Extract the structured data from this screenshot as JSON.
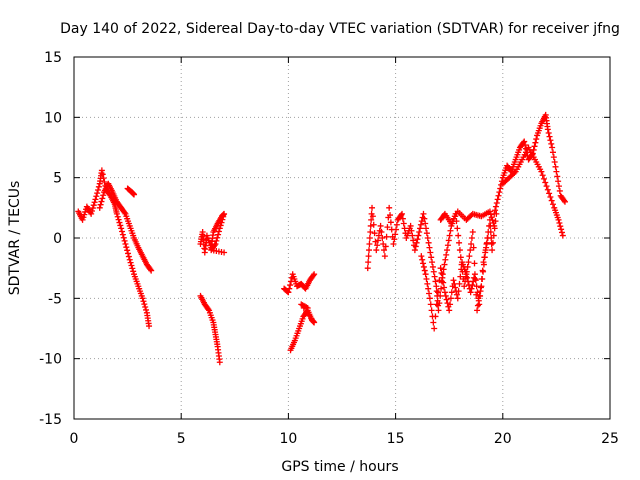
{
  "chart_data": {
    "type": "scatter",
    "title": "Day 140 of 2022, Sidereal Day-to-day VTEC variation (SDTVAR) for receiver jfng",
    "xlabel": "GPS time / hours",
    "ylabel": "SDTVAR / TECUs",
    "xlim": [
      0,
      25
    ],
    "ylim": [
      -15,
      15
    ],
    "xticks": [
      0,
      5,
      10,
      15,
      20,
      25
    ],
    "yticks": [
      -15,
      -10,
      -5,
      0,
      5,
      10,
      15
    ],
    "grid": true,
    "marker": "+",
    "color": "#ff0000",
    "series": [
      {
        "name": "SDTVAR",
        "segments": [
          [
            [
              0.2,
              2.2
            ],
            [
              0.4,
              1.5
            ],
            [
              0.6,
              2.6
            ],
            [
              0.8,
              2.0
            ],
            [
              1.0,
              3.2
            ],
            [
              1.2,
              4.5
            ],
            [
              1.3,
              5.6
            ],
            [
              1.5,
              4.0
            ],
            [
              1.7,
              3.5
            ],
            [
              1.9,
              2.8
            ],
            [
              2.0,
              2.0
            ],
            [
              2.2,
              0.8
            ],
            [
              2.4,
              -0.5
            ],
            [
              2.6,
              -1.8
            ],
            [
              2.8,
              -3.0
            ],
            [
              3.0,
              -4.0
            ],
            [
              3.2,
              -5.0
            ],
            [
              3.4,
              -6.2
            ],
            [
              3.5,
              -7.3
            ]
          ],
          [
            [
              1.2,
              2.5
            ],
            [
              1.4,
              3.8
            ],
            [
              1.6,
              4.5
            ],
            [
              1.8,
              3.8
            ],
            [
              2.0,
              3.0
            ],
            [
              2.2,
              2.5
            ],
            [
              2.4,
              2.0
            ],
            [
              2.6,
              1.0
            ],
            [
              2.8,
              0.0
            ],
            [
              3.0,
              -0.8
            ],
            [
              3.2,
              -1.5
            ],
            [
              3.4,
              -2.2
            ],
            [
              3.6,
              -2.7
            ]
          ],
          [
            [
              2.5,
              4.1
            ],
            [
              2.7,
              3.8
            ],
            [
              2.8,
              3.6
            ]
          ],
          [
            [
              5.9,
              -0.5
            ],
            [
              6.0,
              0.5
            ],
            [
              6.1,
              -1.2
            ],
            [
              6.2,
              0.2
            ],
            [
              6.4,
              -0.8
            ],
            [
              6.5,
              0.5
            ],
            [
              6.7,
              1.2
            ],
            [
              6.9,
              1.8
            ],
            [
              7.0,
              2.0
            ],
            [
              6.8,
              0.8
            ],
            [
              6.6,
              -0.5
            ],
            [
              6.4,
              -1.0
            ],
            [
              7.0,
              -1.2
            ]
          ],
          [
            [
              5.9,
              -4.8
            ],
            [
              6.1,
              -5.5
            ],
            [
              6.3,
              -6.0
            ],
            [
              6.5,
              -7.0
            ],
            [
              6.6,
              -8.0
            ],
            [
              6.7,
              -9.0
            ],
            [
              6.8,
              -10.3
            ]
          ],
          [
            [
              9.8,
              -4.2
            ],
            [
              10.0,
              -4.5
            ],
            [
              10.2,
              -3.0
            ],
            [
              10.4,
              -4.0
            ],
            [
              10.6,
              -3.8
            ],
            [
              10.8,
              -4.2
            ],
            [
              11.0,
              -3.5
            ],
            [
              11.2,
              -3.0
            ]
          ],
          [
            [
              10.1,
              -9.3
            ],
            [
              10.3,
              -8.5
            ],
            [
              10.5,
              -7.5
            ],
            [
              10.7,
              -6.5
            ],
            [
              10.9,
              -6.0
            ],
            [
              11.1,
              -6.8
            ],
            [
              11.2,
              -7.0
            ],
            [
              10.6,
              -5.5
            ],
            [
              10.9,
              -5.8
            ]
          ],
          [
            [
              13.7,
              -2.5
            ],
            [
              13.8,
              0.0
            ],
            [
              13.9,
              2.5
            ],
            [
              14.1,
              -1.0
            ],
            [
              14.3,
              1.0
            ],
            [
              14.5,
              -1.5
            ],
            [
              14.7,
              2.5
            ],
            [
              14.9,
              -0.5
            ],
            [
              15.1,
              1.5
            ],
            [
              15.3,
              2.0
            ],
            [
              15.5,
              0.0
            ],
            [
              15.7,
              1.0
            ],
            [
              15.9,
              -1.0
            ],
            [
              16.1,
              0.5
            ],
            [
              16.3,
              2.0
            ],
            [
              16.5,
              0.0
            ],
            [
              16.7,
              -2.0
            ],
            [
              16.9,
              -4.0
            ],
            [
              17.0,
              -6.0
            ],
            [
              17.2,
              -3.0
            ],
            [
              17.4,
              -1.0
            ],
            [
              17.6,
              1.0
            ],
            [
              17.8,
              2.0
            ],
            [
              18.0,
              -1.0
            ],
            [
              18.2,
              -4.0
            ],
            [
              18.4,
              -2.0
            ],
            [
              18.6,
              0.5
            ],
            [
              18.8,
              -6.0
            ],
            [
              19.0,
              -4.0
            ],
            [
              19.2,
              -1.0
            ],
            [
              19.4,
              1.5
            ],
            [
              19.5,
              -1.0
            ],
            [
              19.7,
              2.0
            ]
          ],
          [
            [
              16.2,
              -1.5
            ],
            [
              16.4,
              -3.0
            ],
            [
              16.6,
              -5.0
            ],
            [
              16.8,
              -7.5
            ],
            [
              17.1,
              -2.5
            ],
            [
              17.3,
              -4.5
            ],
            [
              17.5,
              -6.0
            ],
            [
              17.7,
              -3.5
            ],
            [
              17.9,
              -5.0
            ],
            [
              18.1,
              -2.0
            ],
            [
              18.3,
              -3.0
            ],
            [
              18.5,
              -4.5
            ],
            [
              18.7,
              -3.0
            ],
            [
              18.9,
              -5.5
            ],
            [
              19.1,
              -2.0
            ],
            [
              19.3,
              0.0
            ]
          ],
          [
            [
              17.1,
              1.5
            ],
            [
              17.3,
              2.0
            ],
            [
              17.6,
              1.2
            ],
            [
              17.9,
              2.2
            ],
            [
              18.3,
              1.5
            ],
            [
              18.6,
              2.0
            ],
            [
              19.0,
              1.8
            ],
            [
              19.4,
              2.2
            ],
            [
              19.6,
              1.0
            ]
          ],
          [
            [
              19.6,
              2.0
            ],
            [
              19.8,
              3.5
            ],
            [
              20.0,
              5.0
            ],
            [
              20.2,
              6.0
            ],
            [
              20.4,
              5.5
            ],
            [
              20.6,
              6.5
            ],
            [
              20.8,
              7.5
            ],
            [
              21.0,
              8.0
            ],
            [
              21.2,
              6.5
            ],
            [
              21.4,
              7.0
            ],
            [
              21.6,
              8.5
            ],
            [
              21.8,
              9.5
            ],
            [
              22.0,
              10.2
            ],
            [
              22.1,
              9.0
            ],
            [
              22.3,
              7.5
            ],
            [
              22.5,
              5.5
            ],
            [
              22.7,
              3.5
            ],
            [
              22.9,
              3.0
            ]
          ],
          [
            [
              20.0,
              4.5
            ],
            [
              20.3,
              5.0
            ],
            [
              20.6,
              5.5
            ],
            [
              20.9,
              6.5
            ],
            [
              21.2,
              7.5
            ],
            [
              21.5,
              6.5
            ],
            [
              21.8,
              5.5
            ],
            [
              22.1,
              4.0
            ],
            [
              22.4,
              2.5
            ],
            [
              22.6,
              1.5
            ],
            [
              22.8,
              0.2
            ]
          ]
        ]
      }
    ]
  }
}
